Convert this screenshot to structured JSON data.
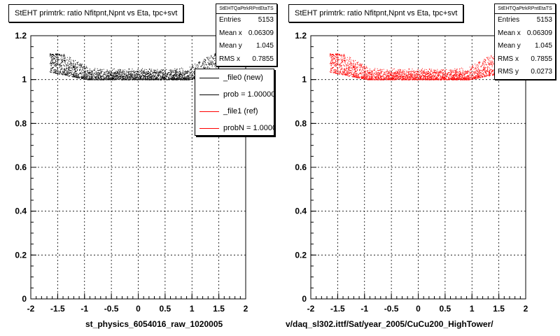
{
  "colors": {
    "ref": "#ff0000",
    "new": "#000000",
    "grid": "#000000"
  },
  "panels": [
    {
      "title": "StEHT primtrk: ratio Nfitpnt,Npnt vs Eta, tpc+svt",
      "stats": {
        "name": "StEHTQaPtrkRPntEtaTS",
        "rows": [
          {
            "label": "Entries",
            "value": "5153"
          },
          {
            "label": "Mean x",
            "value": "0.06309"
          },
          {
            "label": "Mean y",
            "value": "1.045"
          },
          {
            "label": "RMS x",
            "value": "0.7855"
          }
        ]
      },
      "legend": [
        {
          "label": "_file0 (new)",
          "color": "#000000"
        },
        {
          "label": "prob = 1.000000",
          "color": "#000000"
        },
        {
          "label": "_file1 (ref)",
          "color": "#ff0000"
        },
        {
          "label": "probN = 1.000000",
          "color": "#ff0000"
        }
      ],
      "footer": "st_physics_6054016_raw_1020005",
      "marker_color": "#000000"
    },
    {
      "title": "StEHT primtrk: ratio Nfitpnt,Npnt vs Eta, tpc+svt",
      "stats": {
        "name": "StEHTQaPtrkRPntEtaTS",
        "rows": [
          {
            "label": "Entries",
            "value": "5153"
          },
          {
            "label": "Mean x",
            "value": "0.06309"
          },
          {
            "label": "Mean y",
            "value": "1.045"
          },
          {
            "label": "RMS x",
            "value": "0.7855"
          },
          {
            "label": "RMS y",
            "value": "0.0273"
          }
        ]
      },
      "legend": [],
      "footer": "v/daq_sl302.ittf/Sat/year_2005/CuCu200_HighTower/",
      "marker_color": "#ff0000"
    }
  ],
  "chart_data": [
    {
      "type": "scatter",
      "title": "StEHT primtrk: ratio Nfitpnt,Npnt vs Eta, tpc+svt",
      "xlim": [
        -2,
        2
      ],
      "ylim": [
        0,
        1.2
      ],
      "x_ticks": [
        "-2",
        "-1.5",
        "-1",
        "-0.5",
        "0",
        "0.5",
        "1",
        "1.5",
        "2"
      ],
      "y_ticks": [
        "0",
        "0.2",
        "0.4",
        "0.6",
        "0.8",
        "1",
        "1.2"
      ],
      "grid": true,
      "series": [
        {
          "name": "_file0 (new)",
          "color": "#000000",
          "band": {
            "x_range": [
              -1.65,
              1.5
            ],
            "y_min": 1.0,
            "y_max": 1.12
          }
        }
      ]
    },
    {
      "type": "scatter",
      "title": "StEHT primtrk: ratio Nfitpnt,Npnt vs Eta, tpc+svt",
      "xlim": [
        -2,
        2
      ],
      "ylim": [
        0,
        1.2
      ],
      "x_ticks": [
        "-2",
        "-1.5",
        "-1",
        "-0.5",
        "0",
        "0.5",
        "1",
        "1.5",
        "2"
      ],
      "y_ticks": [
        "0",
        "0.2",
        "0.4",
        "0.6",
        "0.8",
        "1",
        "1.2"
      ],
      "grid": true,
      "series": [
        {
          "name": "_file1 (ref)",
          "color": "#ff0000",
          "band": {
            "x_range": [
              -1.65,
              1.5
            ],
            "y_min": 1.0,
            "y_max": 1.12
          }
        }
      ]
    }
  ]
}
